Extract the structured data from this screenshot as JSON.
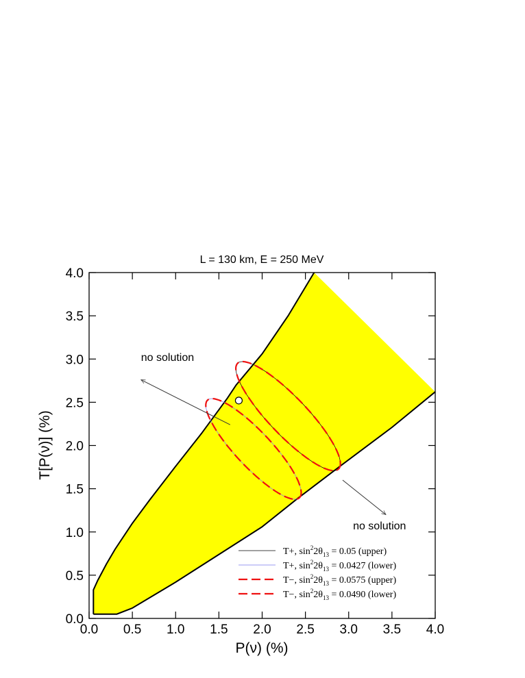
{
  "chart_data": {
    "type": "line",
    "title": "L = 130 km, E = 250 MeV",
    "xlabel": "P(ν)  (%)",
    "ylabel": "T[P(ν)] (%)",
    "xlim": [
      0.0,
      4.0
    ],
    "ylim": [
      0.0,
      4.0
    ],
    "xticks": [
      "0.0",
      "0.5",
      "1.0",
      "1.5",
      "2.0",
      "2.5",
      "3.0",
      "3.5",
      "4.0"
    ],
    "yticks": [
      "0.0",
      "0.5",
      "1.0",
      "1.5",
      "2.0",
      "2.5",
      "3.0",
      "3.5",
      "4.0"
    ],
    "grid": false,
    "legend_position": "bottom-right",
    "allowed_region": {
      "fill": "#ffff00",
      "upper_boundary": [
        [
          0.05,
          0.05
        ],
        [
          0.05,
          0.33
        ],
        [
          0.1,
          0.44
        ],
        [
          0.2,
          0.63
        ],
        [
          0.3,
          0.8
        ],
        [
          0.5,
          1.1
        ],
        [
          0.7,
          1.37
        ],
        [
          1.0,
          1.76
        ],
        [
          1.3,
          2.14
        ],
        [
          1.6,
          2.55
        ],
        [
          1.7,
          2.7
        ],
        [
          2.0,
          3.06
        ],
        [
          2.3,
          3.5
        ],
        [
          2.6,
          4.0
        ]
      ],
      "lower_boundary": [
        [
          0.05,
          0.05
        ],
        [
          0.32,
          0.05
        ],
        [
          0.5,
          0.12
        ],
        [
          1.0,
          0.42
        ],
        [
          1.5,
          0.74
        ],
        [
          2.0,
          1.06
        ],
        [
          2.4,
          1.38
        ],
        [
          2.9,
          1.76
        ],
        [
          3.5,
          2.21
        ],
        [
          4.0,
          2.62
        ]
      ]
    },
    "series": [
      {
        "name": "T+, sin²2θ₁₃ = 0.05 (upper)",
        "color": "#000000",
        "dash": "solid",
        "width": 0.7,
        "ellipse": {
          "cx": 2.3,
          "cy": 2.34,
          "a": 0.845,
          "b": 0.22,
          "angle_deg": -46.4
        }
      },
      {
        "name": "T+, sin²2θ₁₃ = 0.0427 (lower)",
        "color": "#7777ee",
        "dash": "solid",
        "width": 0.7,
        "ellipse": {
          "cx": 1.9,
          "cy": 1.96,
          "a": 0.775,
          "b": 0.205,
          "angle_deg": -46.8
        }
      },
      {
        "name": "T−, sin²2θ₁₃ = 0.0575 (upper)",
        "color": "#ee1111",
        "dash": "dashed",
        "width": 2.2,
        "ellipse": {
          "cx": 2.3,
          "cy": 2.34,
          "a": 0.845,
          "b": 0.22,
          "angle_deg": -46.4
        }
      },
      {
        "name": "T−, sin²2θ₁₃ = 0.0490 (lower)",
        "color": "#ee1111",
        "dash": "dashed",
        "width": 2.2,
        "ellipse": {
          "cx": 1.9,
          "cy": 1.96,
          "a": 0.775,
          "b": 0.205,
          "angle_deg": -46.8
        }
      }
    ],
    "legend_labels": [
      {
        "prefix": "T+, sin",
        "tail": "2θ",
        "sub": "13",
        "value": " = 0.05 (upper)"
      },
      {
        "prefix": "T+, sin",
        "tail": "2θ",
        "sub": "13",
        "value": " = 0.0427 (lower)"
      },
      {
        "prefix": "T−, sin",
        "tail": "2θ",
        "sub": "13",
        "value": " = 0.0575 (upper)"
      },
      {
        "prefix": "T−, sin",
        "tail": "2θ",
        "sub": "13",
        "value": " = 0.0490 (lower)"
      }
    ],
    "point": {
      "x": 1.73,
      "y": 2.52
    },
    "annotations": [
      {
        "text": "no solution",
        "text_x": 0.6,
        "text_y": 2.98,
        "arrow_from": [
          1.63,
          2.24
        ],
        "arrow_to": [
          0.6,
          2.76
        ]
      },
      {
        "text": "no solution",
        "text_x": 3.05,
        "text_y": 1.03,
        "arrow_from": [
          2.93,
          1.6
        ],
        "arrow_to": [
          3.43,
          1.2
        ]
      }
    ]
  }
}
